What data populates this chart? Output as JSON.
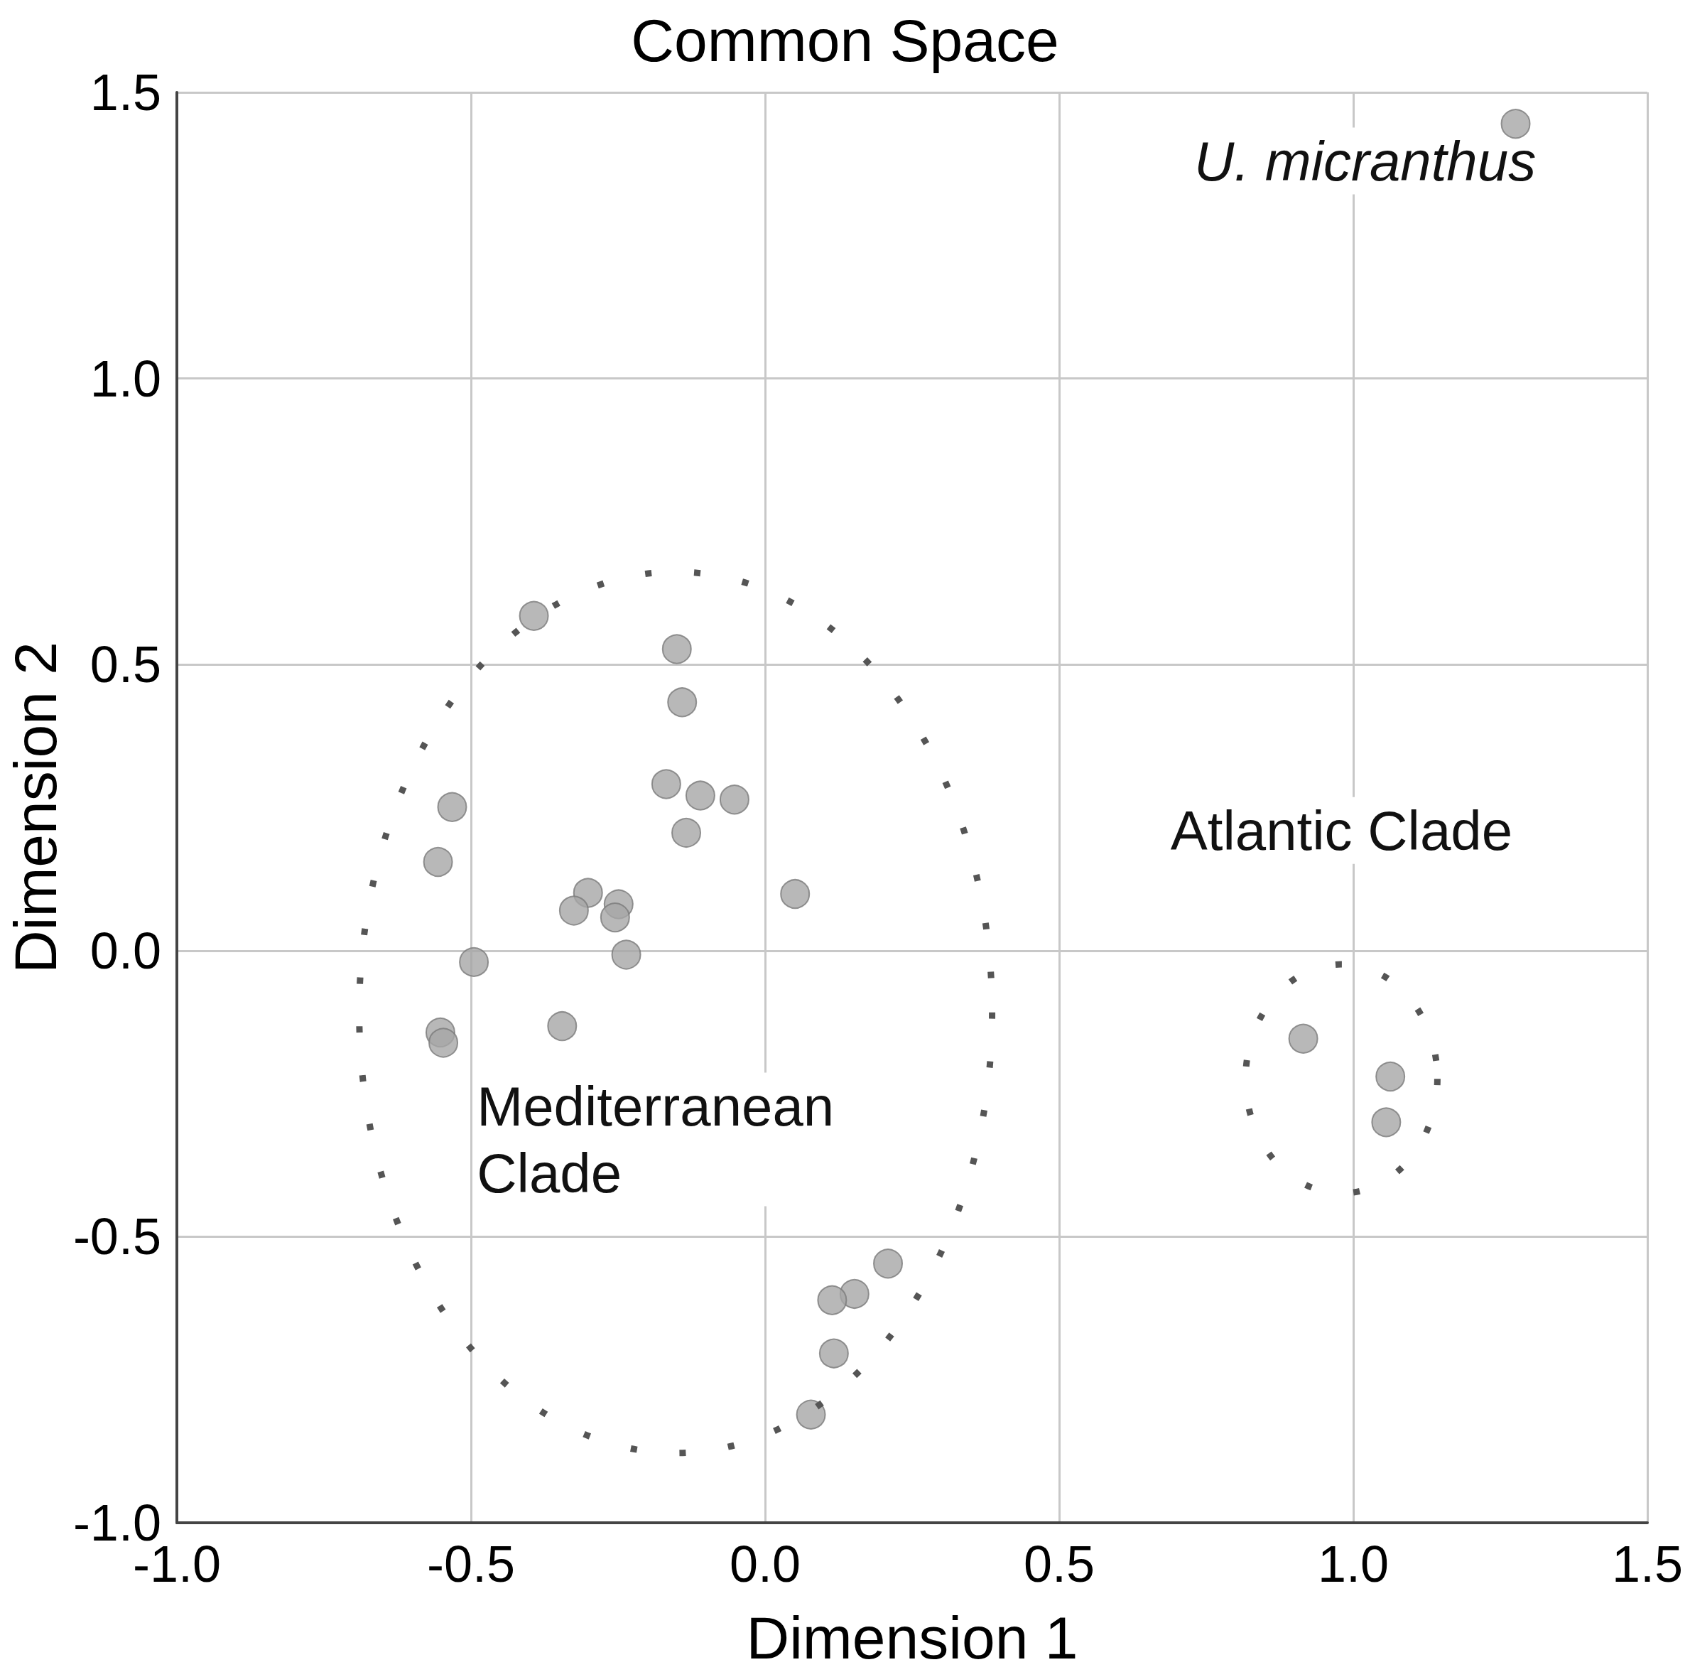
{
  "chart_data": {
    "type": "scatter",
    "title": "Common Space",
    "xlabel": "Dimension 1",
    "ylabel": "Dimension 2",
    "x": [
      1.276,
      -0.393,
      -0.15,
      -0.141,
      -0.168,
      -0.11,
      -0.052,
      -0.134,
      -0.532,
      -0.556,
      -0.301,
      -0.249,
      -0.325,
      -0.255,
      -0.236,
      0.051,
      -0.495,
      -0.345,
      -0.552,
      -0.547,
      0.209,
      0.152,
      0.114,
      0.117,
      0.078,
      0.915,
      1.063,
      1.056
    ],
    "values": [
      1.445,
      0.585,
      0.527,
      0.434,
      0.291,
      0.271,
      0.264,
      0.206,
      0.251,
      0.155,
      0.101,
      0.081,
      0.07,
      0.058,
      -0.007,
      0.099,
      -0.02,
      -0.132,
      -0.143,
      -0.161,
      -0.547,
      -0.6,
      -0.611,
      -0.704,
      -0.811,
      -0.154,
      -0.22,
      -0.3
    ],
    "color": "#a6a6a6",
    "marker": "circle",
    "xlim": [
      -1.0,
      1.5
    ],
    "xticks": [
      {
        "value": -1,
        "label": "-1.0"
      },
      {
        "value": -0.5,
        "label": "-0.5"
      },
      {
        "value": 0,
        "label": "0.0"
      },
      {
        "value": 0.5,
        "label": "0.5"
      },
      {
        "value": 1,
        "label": "1.0"
      },
      {
        "value": 1.5,
        "label": "1.5"
      }
    ],
    "ylim": [
      -1.0,
      1.5
    ],
    "yticks": [
      {
        "value": -1,
        "label": "-1.0"
      },
      {
        "value": -0.5,
        "label": "-0.5"
      },
      {
        "value": 0,
        "label": "0.0"
      },
      {
        "value": 0.5,
        "label": "0.5"
      },
      {
        "value": 1,
        "label": "1.0"
      },
      {
        "value": 1.5,
        "label": "1.5"
      }
    ],
    "grid": true,
    "annotations": [
      "U. micranthus",
      "Atlantic Clade",
      "Mediterranean\nClade"
    ]
  }
}
